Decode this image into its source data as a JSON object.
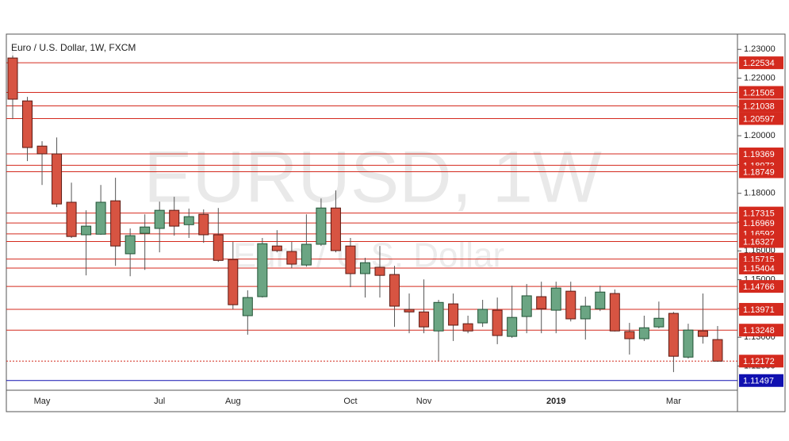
{
  "chart_data": {
    "type": "candlestick",
    "title": "Euro / U.S. Dollar, 1W, FXCM",
    "watermark": {
      "symbol": "EURUSD, 1W",
      "description": "Euro / U.S. Dollar"
    },
    "categories": [
      null,
      null,
      "May",
      null,
      null,
      null,
      null,
      null,
      null,
      null,
      "Jul",
      null,
      null,
      null,
      null,
      "Aug",
      null,
      null,
      null,
      null,
      null,
      null,
      null,
      "Oct",
      null,
      null,
      null,
      null,
      "Nov",
      null,
      null,
      null,
      null,
      null,
      null,
      null,
      null,
      "2019",
      null,
      null,
      null,
      null,
      null,
      null,
      null,
      "Mar",
      null,
      null,
      null
    ],
    "series": [
      {
        "bull_color": "#6ba583",
        "bear_color": "#d75442",
        "bull_edge": "#225437",
        "bear_edge": "#5b1a13",
        "open": [
          1.227,
          1.2121,
          1.1964,
          1.1937,
          1.1769,
          1.1656,
          1.1658,
          1.1774,
          1.159,
          1.1661,
          1.1678,
          1.1741,
          1.1691,
          1.1727,
          1.1656,
          1.157,
          1.1375,
          1.1441,
          1.1617,
          1.1598,
          1.1551,
          1.1623,
          1.1749,
          1.1617,
          1.1521,
          1.1543,
          1.1518,
          1.1397,
          1.1388,
          1.1322,
          1.1416,
          1.1347,
          1.135,
          1.1394,
          1.1303,
          1.1372,
          1.1441,
          1.1394,
          1.146,
          1.1364,
          1.1399,
          1.1452,
          1.132,
          1.1295,
          1.1336,
          1.1383,
          1.1231,
          1.1322,
          1.1292
        ],
        "high": [
          1.23,
          1.2135,
          1.1981,
          1.1994,
          1.1837,
          1.1741,
          1.1829,
          1.1854,
          1.1678,
          1.1727,
          1.1771,
          1.1788,
          1.1747,
          1.1744,
          1.1749,
          1.1631,
          1.1463,
          1.1645,
          1.1672,
          1.1631,
          1.1727,
          1.1782,
          1.181,
          1.1645,
          1.1576,
          1.1617,
          1.1548,
          1.1452,
          1.1501,
          1.143,
          1.1452,
          1.1375,
          1.143,
          1.1438,
          1.1479,
          1.1485,
          1.1493,
          1.1493,
          1.1493,
          1.1441,
          1.1479,
          1.1466,
          1.135,
          1.1375,
          1.1424,
          1.1388,
          1.1347,
          1.1452,
          1.1339
        ],
        "low": [
          1.2058,
          1.1912,
          1.1829,
          1.1752,
          1.1645,
          1.1515,
          1.1656,
          1.1548,
          1.1512,
          1.1534,
          1.1595,
          1.1653,
          1.1645,
          1.1628,
          1.1562,
          1.1397,
          1.1309,
          1.1438,
          1.1595,
          1.154,
          1.1545,
          1.1617,
          1.1595,
          1.1474,
          1.1438,
          1.1438,
          1.1336,
          1.1314,
          1.1314,
          1.1218,
          1.1287,
          1.1314,
          1.1336,
          1.1276,
          1.1298,
          1.1314,
          1.1314,
          1.1314,
          1.1355,
          1.1292,
          1.1391,
          1.132,
          1.124,
          1.1287,
          1.1331,
          1.1179,
          1.1226,
          1.1278,
          1.1215
        ],
        "close": [
          1.2127,
          1.1959,
          1.1937,
          1.1763,
          1.165,
          1.1686,
          1.1769,
          1.1617,
          1.1653,
          1.1683,
          1.1741,
          1.1686,
          1.1719,
          1.1656,
          1.1567,
          1.1413,
          1.1438,
          1.1625,
          1.1601,
          1.1554,
          1.1623,
          1.1749,
          1.1601,
          1.1521,
          1.1559,
          1.1515,
          1.1408,
          1.1388,
          1.1336,
          1.1421,
          1.1342,
          1.1322,
          1.1397,
          1.1306,
          1.1369,
          1.1444,
          1.1399,
          1.1471,
          1.1364,
          1.1408,
          1.1457,
          1.1322,
          1.1295,
          1.1333,
          1.1366,
          1.1234,
          1.1325,
          1.1303,
          1.1217
        ]
      }
    ],
    "ylim": [
      1.1116,
      1.2353
    ],
    "yticks": [
      {
        "value": 1.12,
        "label": "1.12000"
      },
      {
        "value": 1.13,
        "label": "1.13000"
      },
      {
        "value": 1.14,
        "label": "1.14000"
      },
      {
        "value": 1.15,
        "label": "1.15000"
      },
      {
        "value": 1.16,
        "label": "1.16000"
      },
      {
        "value": 1.17,
        "label": "1.17000"
      },
      {
        "value": 1.18,
        "label": "1.18000"
      },
      {
        "value": 1.19,
        "label": "1.19000"
      },
      {
        "value": 1.2,
        "label": "1.20000"
      },
      {
        "value": 1.21,
        "label": "1.21000"
      },
      {
        "value": 1.22,
        "label": "1.22000"
      },
      {
        "value": 1.23,
        "label": "1.23000"
      }
    ],
    "levels": [
      1.22534,
      1.21505,
      1.21038,
      1.20597,
      1.19369,
      1.18973,
      1.18749,
      1.17315,
      1.16969,
      1.16592,
      1.16327,
      1.15715,
      1.15404,
      1.14766,
      1.13971,
      1.13248
    ],
    "level_color": "#d42a1e",
    "current_price": 1.12172,
    "current_color": "#d42a1e",
    "support": 1.11497,
    "support_color": "#1010b0"
  }
}
